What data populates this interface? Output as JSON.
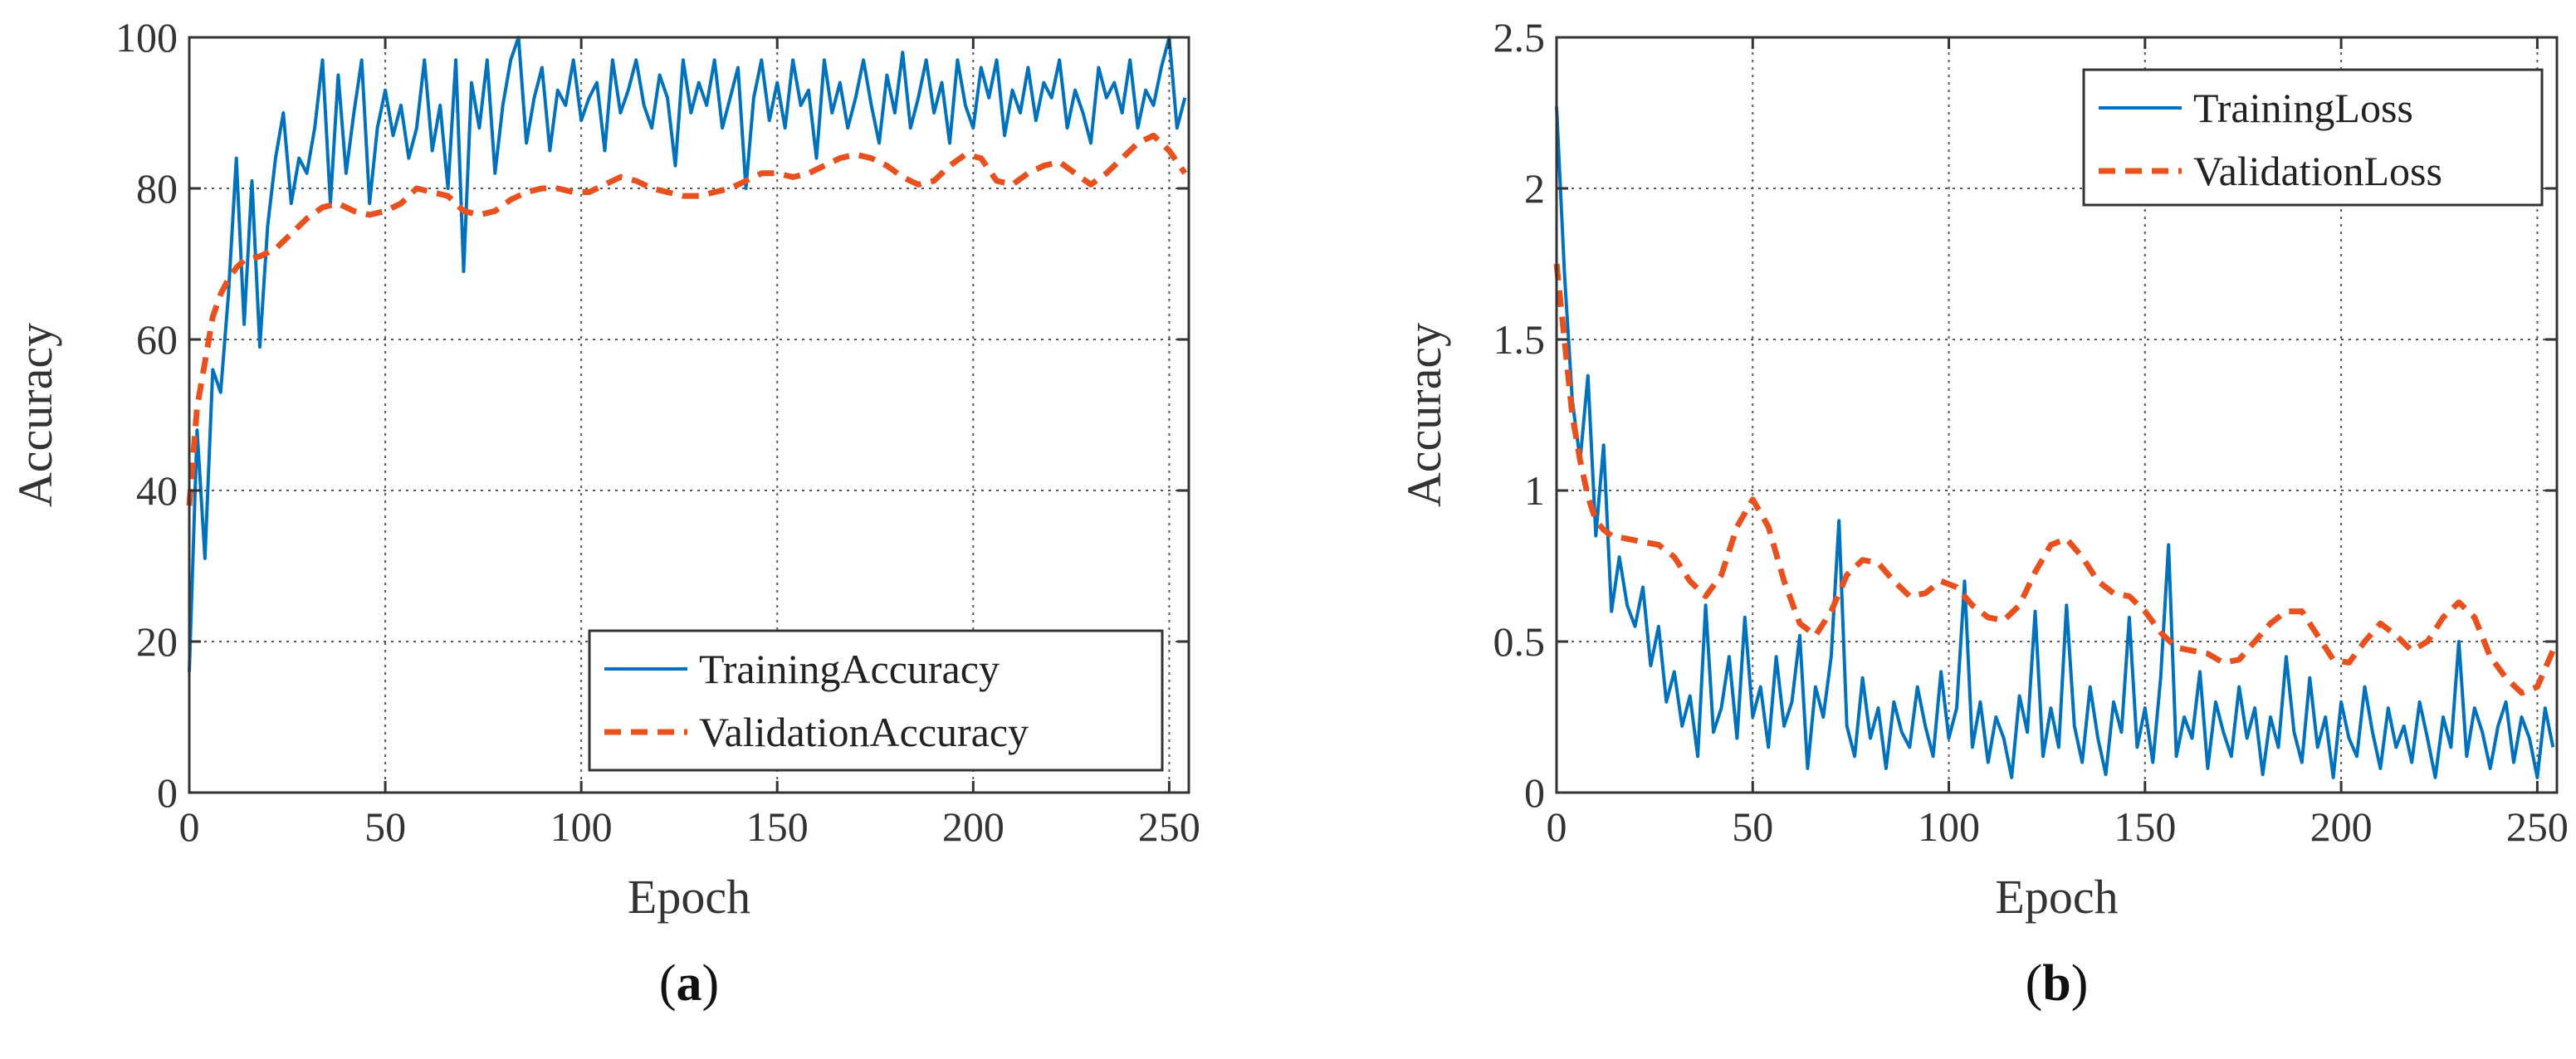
{
  "colors": {
    "training": "#0072BD",
    "validation": "#E8501E",
    "axis": "#333333"
  },
  "chart_data": [
    {
      "type": "line",
      "panel_prefix": "(",
      "panel_letter": "a",
      "panel_suffix": ")",
      "xlabel": "Epoch",
      "ylabel": "Accuracy",
      "xlim": [
        0,
        255
      ],
      "ylim": [
        0,
        100
      ],
      "xticks": [
        0,
        50,
        100,
        150,
        200,
        250
      ],
      "yticks": [
        0,
        20,
        40,
        60,
        80,
        100
      ],
      "xtick_labels": [
        "0",
        "50",
        "100",
        "150",
        "200",
        "250"
      ],
      "ytick_labels": [
        "0",
        "20",
        "40",
        "60",
        "80",
        "100"
      ],
      "grid": true,
      "legend_position": "bottom-right",
      "series": [
        {
          "name": "TrainingAccuracy",
          "style": "solid",
          "x": [
            0,
            2,
            4,
            6,
            8,
            10,
            12,
            14,
            16,
            18,
            20,
            22,
            24,
            26,
            28,
            30,
            32,
            34,
            36,
            38,
            40,
            42,
            44,
            46,
            48,
            50,
            52,
            54,
            56,
            58,
            60,
            62,
            64,
            66,
            68,
            70,
            72,
            74,
            76,
            78,
            80,
            82,
            84,
            86,
            88,
            90,
            92,
            94,
            96,
            98,
            100,
            102,
            104,
            106,
            108,
            110,
            112,
            114,
            116,
            118,
            120,
            122,
            124,
            126,
            128,
            130,
            132,
            134,
            136,
            138,
            140,
            142,
            144,
            146,
            148,
            150,
            152,
            154,
            156,
            158,
            160,
            162,
            164,
            166,
            168,
            170,
            172,
            174,
            176,
            178,
            180,
            182,
            184,
            186,
            188,
            190,
            192,
            194,
            196,
            198,
            200,
            202,
            204,
            206,
            208,
            210,
            212,
            214,
            216,
            218,
            220,
            222,
            224,
            226,
            228,
            230,
            232,
            234,
            236,
            238,
            240,
            242,
            244,
            246,
            248,
            250,
            252,
            254
          ],
          "y": [
            16,
            48,
            31,
            56,
            53,
            66,
            84,
            62,
            81,
            59,
            75,
            84,
            90,
            78,
            84,
            82,
            88,
            97,
            78,
            95,
            82,
            90,
            97,
            78,
            88,
            93,
            87,
            91,
            84,
            88,
            97,
            85,
            91,
            80,
            97,
            69,
            94,
            88,
            97,
            82,
            91,
            97,
            100,
            86,
            92,
            96,
            85,
            93,
            91,
            97,
            89,
            92,
            94,
            85,
            97,
            90,
            93,
            97,
            91,
            88,
            95,
            92,
            83,
            97,
            90,
            94,
            91,
            97,
            88,
            92,
            96,
            80,
            92,
            97,
            89,
            94,
            88,
            97,
            91,
            93,
            84,
            97,
            90,
            94,
            88,
            92,
            97,
            91,
            86,
            95,
            90,
            98,
            88,
            92,
            97,
            90,
            94,
            86,
            97,
            91,
            88,
            96,
            92,
            97,
            87,
            93,
            90,
            96,
            89,
            94,
            92,
            97,
            88,
            93,
            90,
            86,
            96,
            92,
            94,
            90,
            97,
            88,
            93,
            91,
            96,
            100,
            88,
            92
          ]
        },
        {
          "name": "ValidationAccuracy",
          "style": "dashed",
          "x": [
            0,
            2,
            4,
            6,
            8,
            10,
            12,
            14,
            18,
            22,
            26,
            30,
            34,
            38,
            42,
            46,
            50,
            54,
            58,
            62,
            66,
            70,
            74,
            78,
            82,
            86,
            90,
            94,
            98,
            102,
            106,
            110,
            114,
            118,
            122,
            126,
            130,
            134,
            138,
            142,
            146,
            150,
            154,
            158,
            162,
            166,
            170,
            174,
            178,
            182,
            186,
            190,
            194,
            198,
            202,
            206,
            210,
            214,
            218,
            222,
            226,
            230,
            234,
            238,
            242,
            246,
            250,
            254
          ],
          "y": [
            38,
            51,
            57,
            63,
            66,
            68,
            69.5,
            70.5,
            71,
            72,
            74,
            76,
            77.5,
            78,
            77,
            76.5,
            77,
            78,
            80,
            79.5,
            79,
            77,
            76.5,
            77,
            78.5,
            79.5,
            80,
            80,
            79.5,
            79.5,
            80.5,
            81.5,
            81,
            80,
            79.5,
            79,
            79,
            79.5,
            80,
            81,
            82,
            82,
            81.5,
            82,
            83,
            84,
            84.5,
            84,
            83,
            81.5,
            80.5,
            81,
            83,
            84.5,
            84,
            81,
            80.5,
            82,
            83,
            83.5,
            82,
            80.5,
            82,
            84,
            86,
            87,
            85,
            82
          ]
        }
      ]
    },
    {
      "type": "line",
      "panel_prefix": "(",
      "panel_letter": "b",
      "panel_suffix": ")",
      "xlabel": "Epoch",
      "ylabel": "Accuracy",
      "xlim": [
        0,
        255
      ],
      "ylim": [
        0,
        2.5
      ],
      "xticks": [
        0,
        50,
        100,
        150,
        200,
        250
      ],
      "yticks": [
        0,
        0.5,
        1,
        1.5,
        2,
        2.5
      ],
      "xtick_labels": [
        "0",
        "50",
        "100",
        "150",
        "200",
        "250"
      ],
      "ytick_labels": [
        "0",
        "0.5",
        "1",
        "1.5",
        "2",
        "2.5"
      ],
      "grid": true,
      "legend_position": "top-right",
      "series": [
        {
          "name": "TrainingLoss",
          "style": "solid",
          "x": [
            0,
            2,
            4,
            6,
            8,
            10,
            12,
            14,
            16,
            18,
            20,
            22,
            24,
            26,
            28,
            30,
            32,
            34,
            36,
            38,
            40,
            42,
            44,
            46,
            48,
            50,
            52,
            54,
            56,
            58,
            60,
            62,
            64,
            66,
            68,
            70,
            72,
            74,
            76,
            78,
            80,
            82,
            84,
            86,
            88,
            90,
            92,
            94,
            96,
            98,
            100,
            102,
            104,
            106,
            108,
            110,
            112,
            114,
            116,
            118,
            120,
            122,
            124,
            126,
            128,
            130,
            132,
            134,
            136,
            138,
            140,
            142,
            144,
            146,
            148,
            150,
            152,
            154,
            156,
            158,
            160,
            162,
            164,
            166,
            168,
            170,
            172,
            174,
            176,
            178,
            180,
            182,
            184,
            186,
            188,
            190,
            192,
            194,
            196,
            198,
            200,
            202,
            204,
            206,
            208,
            210,
            212,
            214,
            216,
            218,
            220,
            222,
            224,
            226,
            228,
            230,
            232,
            234,
            236,
            238,
            240,
            242,
            244,
            246,
            248,
            250,
            252,
            254
          ],
          "y": [
            2.27,
            1.72,
            1.3,
            1.1,
            1.38,
            0.85,
            1.15,
            0.6,
            0.78,
            0.62,
            0.55,
            0.68,
            0.42,
            0.55,
            0.3,
            0.4,
            0.22,
            0.32,
            0.12,
            0.62,
            0.2,
            0.28,
            0.45,
            0.18,
            0.58,
            0.25,
            0.35,
            0.15,
            0.45,
            0.22,
            0.3,
            0.52,
            0.08,
            0.35,
            0.25,
            0.45,
            0.9,
            0.22,
            0.12,
            0.38,
            0.18,
            0.28,
            0.08,
            0.3,
            0.2,
            0.15,
            0.35,
            0.22,
            0.12,
            0.4,
            0.18,
            0.28,
            0.7,
            0.15,
            0.3,
            0.1,
            0.25,
            0.18,
            0.05,
            0.32,
            0.2,
            0.6,
            0.12,
            0.28,
            0.15,
            0.62,
            0.22,
            0.1,
            0.35,
            0.18,
            0.06,
            0.3,
            0.2,
            0.58,
            0.15,
            0.28,
            0.1,
            0.38,
            0.82,
            0.12,
            0.25,
            0.18,
            0.4,
            0.08,
            0.3,
            0.2,
            0.12,
            0.35,
            0.18,
            0.28,
            0.06,
            0.25,
            0.15,
            0.45,
            0.2,
            0.1,
            0.38,
            0.15,
            0.25,
            0.05,
            0.3,
            0.18,
            0.12,
            0.35,
            0.2,
            0.08,
            0.28,
            0.15,
            0.22,
            0.1,
            0.3,
            0.18,
            0.05,
            0.25,
            0.15,
            0.5,
            0.12,
            0.28,
            0.2,
            0.08,
            0.22,
            0.3,
            0.1,
            0.25,
            0.18,
            0.05,
            0.28,
            0.15
          ]
        },
        {
          "name": "ValidationLoss",
          "style": "dashed",
          "x": [
            0,
            2,
            4,
            6,
            8,
            10,
            12,
            14,
            18,
            22,
            26,
            30,
            34,
            38,
            42,
            46,
            50,
            54,
            58,
            62,
            66,
            70,
            74,
            78,
            82,
            86,
            90,
            94,
            98,
            102,
            106,
            110,
            114,
            118,
            122,
            126,
            130,
            134,
            138,
            142,
            146,
            150,
            154,
            158,
            162,
            166,
            170,
            174,
            178,
            182,
            186,
            190,
            194,
            198,
            202,
            206,
            210,
            214,
            218,
            222,
            226,
            230,
            234,
            238,
            242,
            246,
            250,
            254
          ],
          "y": [
            1.75,
            1.5,
            1.25,
            1.1,
            0.98,
            0.9,
            0.87,
            0.85,
            0.84,
            0.83,
            0.82,
            0.78,
            0.7,
            0.65,
            0.72,
            0.88,
            0.97,
            0.88,
            0.7,
            0.56,
            0.52,
            0.6,
            0.72,
            0.77,
            0.76,
            0.7,
            0.65,
            0.66,
            0.7,
            0.68,
            0.62,
            0.58,
            0.57,
            0.62,
            0.73,
            0.82,
            0.84,
            0.78,
            0.7,
            0.66,
            0.65,
            0.6,
            0.53,
            0.48,
            0.47,
            0.46,
            0.43,
            0.44,
            0.5,
            0.56,
            0.6,
            0.6,
            0.52,
            0.44,
            0.43,
            0.5,
            0.56,
            0.52,
            0.47,
            0.5,
            0.58,
            0.63,
            0.58,
            0.45,
            0.38,
            0.33,
            0.35,
            0.47
          ]
        }
      ]
    }
  ]
}
